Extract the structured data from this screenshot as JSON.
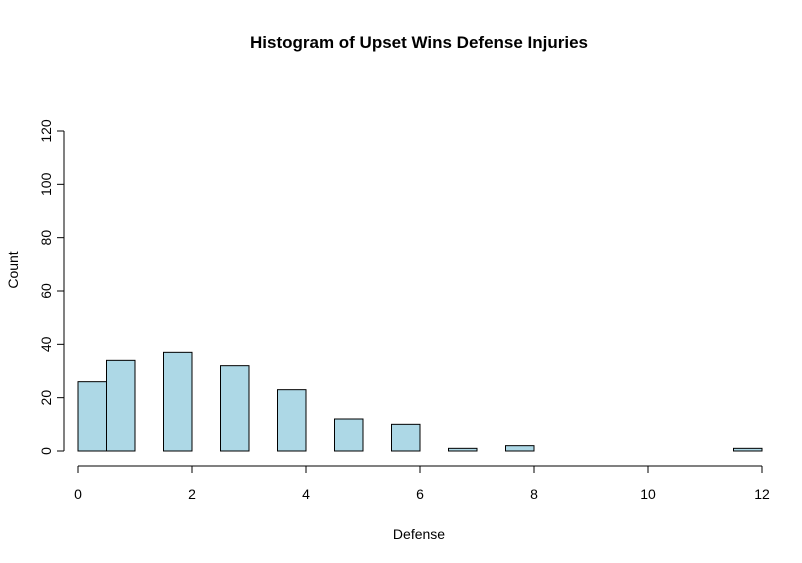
{
  "chart_data": {
    "type": "bar",
    "title": "Histogram of Upset Wins Defense Injuries",
    "xlabel": "Defense",
    "ylabel": "Count",
    "xlim": [
      0,
      12
    ],
    "ylim": [
      0,
      120
    ],
    "x_ticks": [
      0,
      2,
      4,
      6,
      8,
      10,
      12
    ],
    "y_ticks": [
      0,
      20,
      40,
      60,
      80,
      100,
      120
    ],
    "bins": [
      {
        "start": 0.0,
        "end": 0.5,
        "count": 26
      },
      {
        "start": 0.5,
        "end": 1.0,
        "count": 34
      },
      {
        "start": 1.5,
        "end": 2.0,
        "count": 37
      },
      {
        "start": 2.5,
        "end": 3.0,
        "count": 32
      },
      {
        "start": 3.5,
        "end": 4.0,
        "count": 23
      },
      {
        "start": 4.5,
        "end": 5.0,
        "count": 12
      },
      {
        "start": 5.5,
        "end": 6.0,
        "count": 10
      },
      {
        "start": 6.5,
        "end": 7.0,
        "count": 1
      },
      {
        "start": 7.5,
        "end": 8.0,
        "count": 2
      },
      {
        "start": 8.0,
        "end": 11.5,
        "count": 0
      },
      {
        "start": 11.5,
        "end": 12.0,
        "count": 1
      }
    ],
    "bar_color": "#add8e6",
    "grid": false
  }
}
